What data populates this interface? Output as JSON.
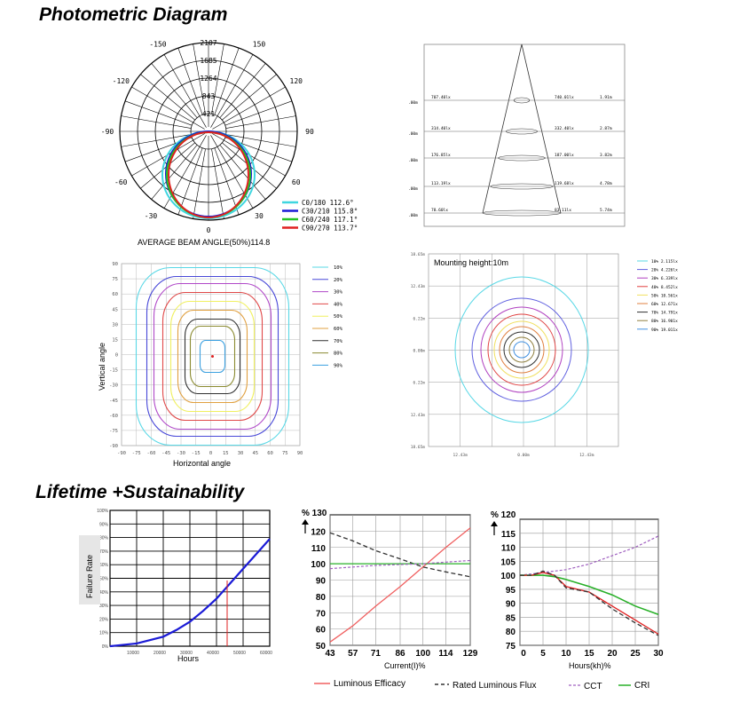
{
  "titles": {
    "photometric": "Photometric Diagram",
    "lifetime": "Lifetime +Sustainability"
  },
  "colors": {
    "cyan": "#3fd6e0",
    "blue": "#1a1ad6",
    "green": "#22c322",
    "red": "#e02020",
    "contour": [
      "#5ad8e6",
      "#4848d8",
      "#b048c8",
      "#e04848",
      "#f0f060",
      "#e0a040",
      "#303030",
      "#8a8a30",
      "#3aa0e0"
    ],
    "iso": [
      "#5ad8e6",
      "#6060e0",
      "#b040c0",
      "#e04040",
      "#f0e060",
      "#e08040",
      "#303030",
      "#908040",
      "#4090e0"
    ]
  },
  "chart_data": [
    {
      "type": "polar",
      "rings": [
        "2107",
        "1685",
        "1264",
        "843",
        "421"
      ],
      "angles": [
        "-150",
        "150",
        "-120",
        "120",
        "-90",
        "90",
        "-60",
        "60",
        "-30",
        "30",
        "0"
      ],
      "series": [
        {
          "name": "C0/180 112.6°",
          "beam": 112.6,
          "color": "#3fd6e0"
        },
        {
          "name": "C30/210 115.8°",
          "beam": 115.8,
          "color": "#1a1ad6"
        },
        {
          "name": "C60/240 117.1°",
          "beam": 117.1,
          "color": "#22c322"
        },
        {
          "name": "C90/270 113.7°",
          "beam": 113.7,
          "color": "#e02020"
        }
      ],
      "caption": "AVERAGE BEAM ANGLE(50%)114.8"
    },
    {
      "type": "table",
      "heights": [
        ".00m",
        ".00m",
        ".00m",
        ".00m",
        ".00m"
      ],
      "eav": [
        "707.40lx",
        "314.40lx",
        "176.85lx",
        "113.19lx",
        "78.60lx"
      ],
      "emax": [
        "740.01lx",
        "332.40lx",
        "187.00lx",
        "119.68lx",
        "83.11lx"
      ],
      "diam": [
        "1.91m",
        "2.87m",
        "3.82m",
        "4.78m",
        "5.74m"
      ]
    },
    {
      "type": "heatmap",
      "xlabel": "Horizontal angle",
      "ylabel": "Vertical angle",
      "xticks": [
        "-90",
        "-75",
        "-60",
        "-45",
        "-30",
        "-15",
        "0",
        "15",
        "30",
        "45",
        "60",
        "75",
        "90"
      ],
      "yticks": [
        "90",
        "75",
        "60",
        "45",
        "30",
        "15",
        "0",
        "-15",
        "-30",
        "-45",
        "-60",
        "-75",
        "-90"
      ],
      "legend": [
        "10%",
        "20%",
        "30%",
        "40%",
        "50%",
        "60%",
        "70%",
        "80%",
        "90%"
      ]
    },
    {
      "type": "heatmap",
      "note": "Mounting height:10m",
      "yticks": [
        "18.65m",
        "12.43m",
        "6.22m",
        "0.00m",
        "6.22m",
        "12.43m",
        "18.65m"
      ],
      "xticks": [
        "12.43m",
        "0.00m",
        "12.43m"
      ],
      "legend": [
        "10% 2.115lx",
        "20% 4.226lx",
        "30% 6.339lx",
        "40% 8.452lx",
        "50% 10.561x",
        "60% 12.671x",
        "70% 14.791x",
        "80% 16.901x",
        "90% 19.011x"
      ]
    },
    {
      "type": "line",
      "xlabel": "Hours",
      "ylabel": "Failure Rate",
      "xticks": [
        "10000",
        "20000",
        "30000",
        "40000",
        "50000",
        "60000"
      ],
      "yticks": [
        "100%",
        "90%",
        "80%",
        "70%",
        "60%",
        "50%",
        "40%",
        "30%",
        "20%",
        "10%",
        "0%"
      ],
      "x": [
        0,
        10000,
        20000,
        25000,
        30000,
        35000,
        40000,
        45000,
        50000,
        55000,
        60000
      ],
      "y": [
        0,
        2,
        7,
        12,
        18,
        26,
        35,
        46,
        57,
        68,
        79
      ],
      "marker_x": 44000
    },
    {
      "type": "line",
      "xlabel": "Current(I)%",
      "yunit": "% 130",
      "xticks": [
        "43",
        "57",
        "71",
        "86",
        "100",
        "114",
        "129"
      ],
      "yticks": [
        "120",
        "110",
        "100",
        "90",
        "80",
        "70",
        "60",
        "50"
      ],
      "x": [
        43,
        57,
        71,
        86,
        100,
        114,
        129
      ],
      "series": [
        {
          "name": "Luminous Efficacy",
          "values": [
            52,
            62,
            74,
            86,
            98,
            110,
            122
          ]
        },
        {
          "name": "Rated Luminous Flux",
          "values": [
            119,
            114,
            108,
            103,
            98,
            95,
            92
          ]
        },
        {
          "name": "series-green",
          "values": [
            100,
            100,
            100,
            100,
            100,
            100,
            100
          ]
        },
        {
          "name": "series-purple",
          "values": [
            97,
            98,
            99,
            99.5,
            100,
            101,
            102
          ]
        }
      ]
    },
    {
      "type": "line",
      "xlabel": "Hours(kh)%",
      "yunit": "% 120",
      "xticks": [
        "0",
        "5",
        "10",
        "15",
        "20",
        "25",
        "30"
      ],
      "yticks": [
        "115",
        "110",
        "105",
        "100",
        "95",
        "90",
        "85",
        "80",
        "75"
      ],
      "x": [
        0,
        2.5,
        5,
        7.5,
        10,
        15,
        20,
        25,
        30
      ],
      "series": [
        {
          "name": "CCT",
          "values": [
            100,
            100.5,
            101,
            101.5,
            102,
            104,
            107,
            110,
            114
          ]
        },
        {
          "name": "CRI",
          "values": [
            100,
            100,
            100,
            99.5,
            98.5,
            96,
            93,
            89,
            86
          ]
        },
        {
          "name": "series-red",
          "values": [
            100,
            100,
            101,
            100,
            96,
            94,
            89,
            84,
            79
          ]
        },
        {
          "name": "series-black",
          "values": [
            100,
            100,
            101.5,
            100,
            95.5,
            94,
            88,
            83,
            78.5
          ]
        }
      ]
    }
  ],
  "legend_bottom": {
    "eff": "Luminous Efficacy",
    "flux": "Rated Luminous Flux",
    "cct": "CCT",
    "cri": "CRI"
  }
}
